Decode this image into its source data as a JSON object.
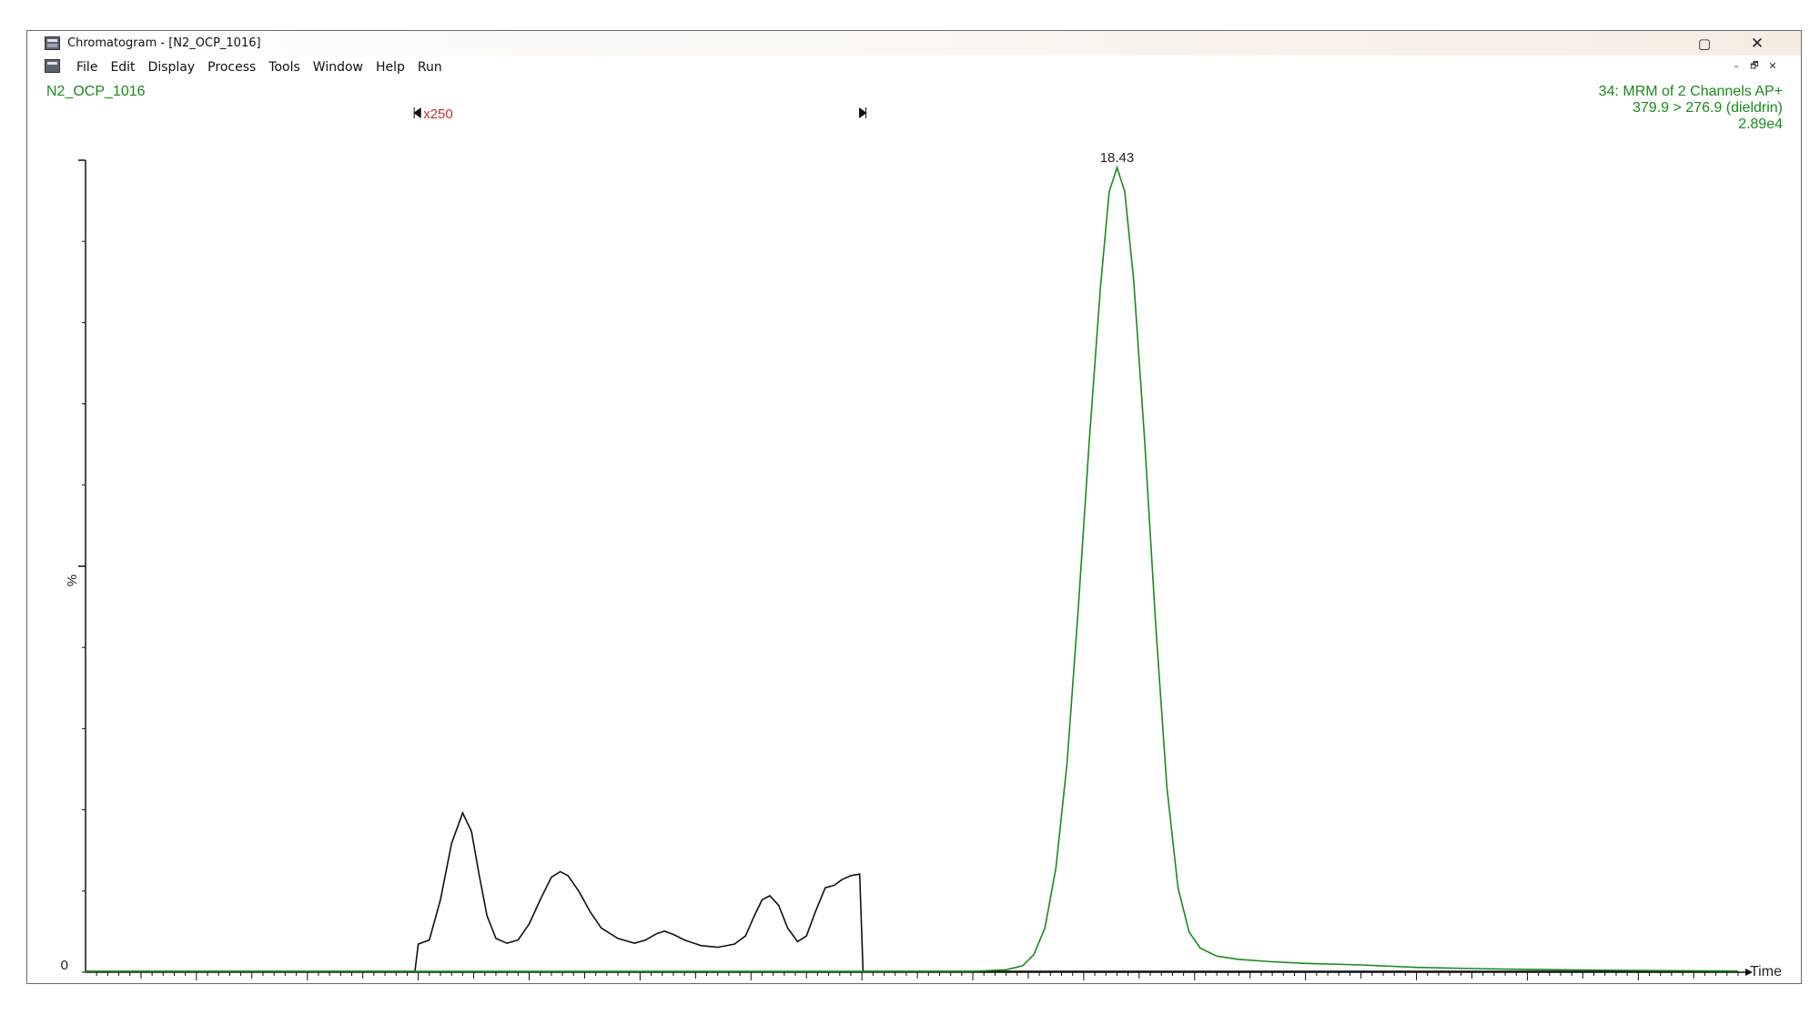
{
  "window": {
    "title": "Chromatogram - [N2_OCP_1016]",
    "restore_glyph": "▢",
    "close_glyph": "✕",
    "icon": "chromatogram-app-icon"
  },
  "menu": {
    "items": [
      "File",
      "Edit",
      "Display",
      "Process",
      "Tools",
      "Window",
      "Help",
      "Run"
    ],
    "doc_controls": {
      "minimize": "–",
      "restore": "🗗",
      "close": "✕"
    }
  },
  "trace": {
    "sample_name": "N2_OCP_1016",
    "function_label": "34: MRM of 2 Channels AP+",
    "transition_label": "379.9 > 276.9 (dieldrin)",
    "intensity_label": "2.89e4",
    "magnification_label": "x250",
    "peak_label": "18.43",
    "y_axis_label": "%",
    "y_zero_label": "0",
    "x_axis_label": "Time",
    "green_color": "#1a8a1a",
    "black_color": "#111111",
    "magnify_color": "#c03030"
  },
  "chart_data": {
    "type": "line",
    "xlabel": "Time",
    "ylabel": "%",
    "xlim": [
      17.5,
      18.99
    ],
    "ylim": [
      0,
      100
    ],
    "x_ticks": [
      "17.60",
      "17.70",
      "17.80",
      "17.90",
      "18.00",
      "18.10",
      "18.20",
      "18.30",
      "18.40",
      "18.50",
      "18.60",
      "18.70",
      "18.80",
      "18.90"
    ],
    "magnified_region": {
      "start": 17.798,
      "end": 18.202,
      "factor": 250
    },
    "series": [
      {
        "points": [
          [
            17.5,
            0.1
          ],
          [
            17.797,
            0.1
          ],
          [
            17.8,
            3.5
          ],
          [
            17.81,
            4.0
          ],
          [
            17.82,
            9.0
          ],
          [
            17.83,
            16.0
          ],
          [
            17.84,
            19.8
          ],
          [
            17.848,
            17.5
          ],
          [
            17.855,
            12.0
          ],
          [
            17.862,
            7.0
          ],
          [
            17.87,
            4.2
          ],
          [
            17.88,
            3.6
          ],
          [
            17.89,
            4.0
          ],
          [
            17.9,
            6.0
          ],
          [
            17.91,
            9.0
          ],
          [
            17.92,
            11.8
          ],
          [
            17.928,
            12.5
          ],
          [
            17.935,
            12.0
          ],
          [
            17.945,
            10.0
          ],
          [
            17.955,
            7.5
          ],
          [
            17.965,
            5.5
          ],
          [
            17.98,
            4.2
          ],
          [
            17.995,
            3.6
          ],
          [
            18.005,
            4.0
          ],
          [
            18.015,
            4.8
          ],
          [
            18.022,
            5.1
          ],
          [
            18.03,
            4.7
          ],
          [
            18.04,
            4.0
          ],
          [
            18.055,
            3.3
          ],
          [
            18.07,
            3.1
          ],
          [
            18.085,
            3.5
          ],
          [
            18.095,
            4.5
          ],
          [
            18.103,
            7.0
          ],
          [
            18.11,
            9.0
          ],
          [
            18.117,
            9.5
          ],
          [
            18.125,
            8.3
          ],
          [
            18.133,
            5.5
          ],
          [
            18.142,
            3.8
          ],
          [
            18.15,
            4.5
          ],
          [
            18.158,
            7.5
          ],
          [
            18.167,
            10.5
          ],
          [
            18.175,
            10.8
          ],
          [
            18.182,
            11.5
          ],
          [
            18.19,
            12.0
          ],
          [
            18.198,
            12.2
          ],
          [
            18.201,
            0.1
          ],
          [
            18.99,
            0.1
          ]
        ]
      },
      {
        "points": [
          [
            17.5,
            0.1
          ],
          [
            18.3,
            0.1
          ],
          [
            18.33,
            0.3
          ],
          [
            18.345,
            0.8
          ],
          [
            18.355,
            2.2
          ],
          [
            18.365,
            5.5
          ],
          [
            18.375,
            13.0
          ],
          [
            18.385,
            26.0
          ],
          [
            18.395,
            45.0
          ],
          [
            18.405,
            66.0
          ],
          [
            18.415,
            85.0
          ],
          [
            18.423,
            97.0
          ],
          [
            18.43,
            100.0
          ],
          [
            18.437,
            97.0
          ],
          [
            18.445,
            86.0
          ],
          [
            18.455,
            66.0
          ],
          [
            18.465,
            43.0
          ],
          [
            18.475,
            23.0
          ],
          [
            18.485,
            10.5
          ],
          [
            18.495,
            5.0
          ],
          [
            18.505,
            3.0
          ],
          [
            18.52,
            2.0
          ],
          [
            18.54,
            1.6
          ],
          [
            18.57,
            1.3
          ],
          [
            18.6,
            1.1
          ],
          [
            18.65,
            0.9
          ],
          [
            18.7,
            0.6
          ],
          [
            18.75,
            0.45
          ],
          [
            18.8,
            0.35
          ],
          [
            18.85,
            0.28
          ],
          [
            18.9,
            0.22
          ],
          [
            18.95,
            0.18
          ],
          [
            18.99,
            0.15
          ]
        ]
      }
    ]
  }
}
